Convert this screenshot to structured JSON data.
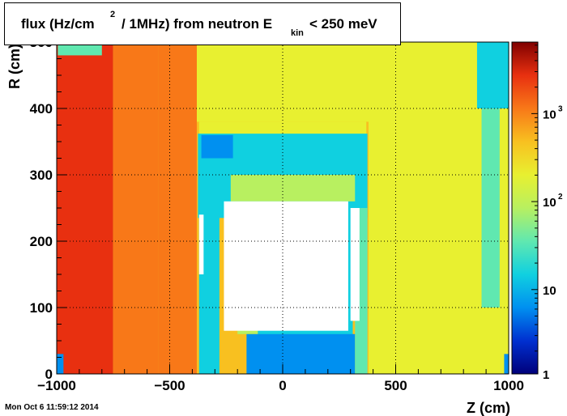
{
  "title_parts": {
    "prefix": "flux (Hz/cm",
    "sup": "2",
    "middle": "/ 1MHz) from   neutron  E",
    "sub": "kin",
    "suffix": "< 250 meV"
  },
  "timestamp": "Mon Oct  6 11:59:12 2014",
  "colors": {
    "palette": [
      "#00007a",
      "#0030d0",
      "#0090f0",
      "#10d0e0",
      "#60e8b0",
      "#b8f060",
      "#e8f030",
      "#f8c020",
      "#f87818",
      "#e83010",
      "#800000"
    ],
    "empty_bins": "#ffffff",
    "grid": "#000000"
  },
  "chart_data": {
    "type": "heatmap",
    "title": "flux (Hz/cm2 / 1MHz) from neutron Ekin < 250 meV",
    "xlabel": "Z (cm)",
    "ylabel": "R (cm)",
    "xlim": [
      -1000,
      1000
    ],
    "ylim": [
      0,
      500
    ],
    "x_ticks": [
      -1000,
      -500,
      0,
      500,
      1000
    ],
    "x_tick_labels": [
      "−1000",
      "−500",
      "0",
      "500",
      "1000"
    ],
    "y_ticks": [
      0,
      100,
      200,
      300,
      400,
      500
    ],
    "y_tick_labels": [
      "0",
      "100",
      "200",
      "300",
      "400",
      "500"
    ],
    "grid": true,
    "colorbar": {
      "scale": "log",
      "range": [
        1.1,
        6500
      ],
      "tick_labels": [
        {
          "value": 1,
          "base": "1",
          "exp": ""
        },
        {
          "value": 10,
          "base": "10",
          "exp": ""
        },
        {
          "value": 100,
          "base": "10",
          "exp": "2"
        },
        {
          "value": 1000,
          "base": "10",
          "exp": "3"
        }
      ]
    },
    "regions": [
      {
        "z": [
          -1000,
          1000
        ],
        "r": [
          0,
          500
        ],
        "value": 200
      },
      {
        "z": [
          -1000,
          -750
        ],
        "r": [
          0,
          500
        ],
        "value": 2500
      },
      {
        "z": [
          -750,
          -550
        ],
        "r": [
          0,
          500
        ],
        "value": 1400
      },
      {
        "z": [
          -550,
          -380
        ],
        "r": [
          0,
          500
        ],
        "value": 850
      },
      {
        "z": [
          -380,
          380
        ],
        "r": [
          0,
          380
        ],
        "value": 700
      },
      {
        "z": [
          -370,
          370
        ],
        "r": [
          360,
          380
        ],
        "value": 150
      },
      {
        "z": [
          -995,
          -800
        ],
        "r": [
          480,
          500
        ],
        "value": 30
      },
      {
        "z": [
          860,
          1000
        ],
        "r": [
          400,
          500
        ],
        "value": 15
      },
      {
        "z": [
          880,
          960
        ],
        "r": [
          100,
          400
        ],
        "value": 30
      },
      {
        "z": [
          -375,
          375
        ],
        "r": [
          235,
          362
        ],
        "value": 12
      },
      {
        "z": [
          -360,
          -220
        ],
        "r": [
          325,
          360
        ],
        "value": 6
      },
      {
        "z": [
          -230,
          320
        ],
        "r": [
          260,
          300
        ],
        "value": 60
      },
      {
        "z": [
          -300,
          320
        ],
        "r": [
          300,
          325
        ],
        "value": 20
      },
      {
        "z": [
          -370,
          -280
        ],
        "r": [
          0,
          240
        ],
        "value": 14
      },
      {
        "z": [
          -240,
          -200
        ],
        "r": [
          60,
          240
        ],
        "value": 500
      },
      {
        "z": [
          -200,
          -110
        ],
        "r": [
          60,
          240
        ],
        "value": 90
      },
      {
        "z": [
          -110,
          310
        ],
        "r": [
          50,
          240
        ],
        "value": 12
      },
      {
        "z": [
          -160,
          320
        ],
        "r": [
          0,
          60
        ],
        "value": 5
      },
      {
        "z": [
          320,
          375
        ],
        "r": [
          0,
          250
        ],
        "value": 40
      },
      {
        "z": [
          -1000,
          -970
        ],
        "r": [
          0,
          30
        ],
        "value": 6
      },
      {
        "z": [
          980,
          1000
        ],
        "r": [
          0,
          30
        ],
        "value": 8
      }
    ],
    "empty_regions": [
      {
        "z": [
          -260,
          290
        ],
        "r": [
          65,
          260
        ]
      },
      {
        "z": [
          300,
          340
        ],
        "r": [
          80,
          250
        ]
      },
      {
        "z": [
          -370,
          -350
        ],
        "r": [
          150,
          240
        ]
      }
    ]
  }
}
